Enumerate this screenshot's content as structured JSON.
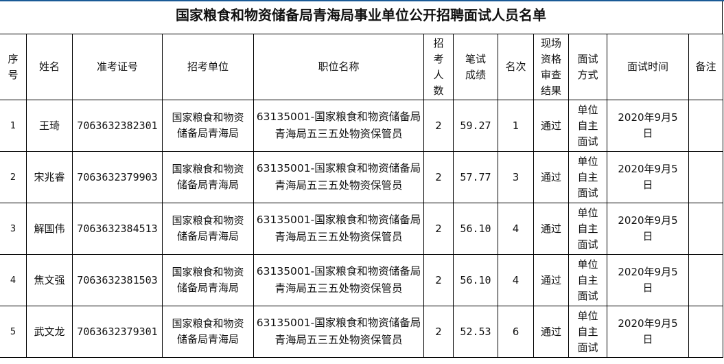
{
  "title": "国家粮食和物资储备局青海局事业单位公开招聘面试人员名单",
  "colors": {
    "top_bar": "#1a5a96"
  },
  "headers": [
    "序号",
    "姓名",
    "准考证号",
    "招考单位",
    "职位名称",
    "招考人数",
    "笔试成绩",
    "名次",
    "现场资格审查结果",
    "面试方式",
    "面试时间",
    "备注"
  ],
  "rows": [
    {
      "seq": "1",
      "name": "王琦",
      "exam_no": "7063632382301",
      "unit": "国家粮食和物资储备局青海局",
      "position": "63135001-国家粮食和物资储备局青海局五三五处物资保管员",
      "quota": "2",
      "score": "59.27",
      "rank": "1",
      "review": "通过",
      "method": "单位自主面试",
      "time": "2020年9月5日",
      "note": ""
    },
    {
      "seq": "2",
      "name": "宋兆睿",
      "exam_no": "7063632379903",
      "unit": "国家粮食和物资储备局青海局",
      "position": "63135001-国家粮食和物资储备局青海局五三五处物资保管员",
      "quota": "2",
      "score": "57.77",
      "rank": "3",
      "review": "通过",
      "method": "单位自主面试",
      "time": "2020年9月5日",
      "note": ""
    },
    {
      "seq": "3",
      "name": "解国伟",
      "exam_no": "7063632384513",
      "unit": "国家粮食和物资储备局青海局",
      "position": "63135001-国家粮食和物资储备局青海局五三五处物资保管员",
      "quota": "2",
      "score": "56.10",
      "rank": "4",
      "review": "通过",
      "method": "单位自主面试",
      "time": "2020年9月5日",
      "note": ""
    },
    {
      "seq": "4",
      "name": "焦文强",
      "exam_no": "7063632381503",
      "unit": "国家粮食和物资储备局青海局",
      "position": "63135001-国家粮食和物资储备局青海局五三五处物资保管员",
      "quota": "2",
      "score": "56.10",
      "rank": "4",
      "review": "通过",
      "method": "单位自主面试",
      "time": "2020年9月5日",
      "note": ""
    },
    {
      "seq": "5",
      "name": "武文龙",
      "exam_no": "7063632379301",
      "unit": "国家粮食和物资储备局青海局",
      "position": "63135001-国家粮食和物资储备局青海局五三五处物资保管员",
      "quota": "2",
      "score": "52.53",
      "rank": "6",
      "review": "通过",
      "method": "单位自主面试",
      "time": "2020年9月5日",
      "note": ""
    }
  ]
}
